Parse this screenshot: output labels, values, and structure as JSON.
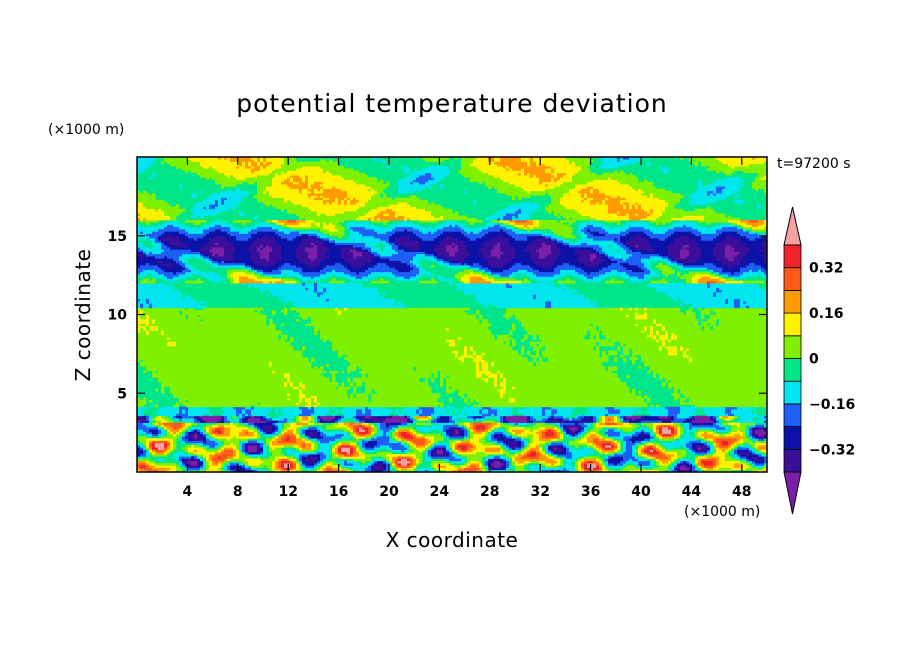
{
  "chart_data": {
    "type": "heatmap",
    "title": "potential temperature deviation",
    "xlabel": "X coordinate",
    "ylabel": "Z coordinate",
    "x_unit": "(×1000 m)",
    "y_unit": "(×1000 m)",
    "time_label": "t=97200 s",
    "xlim": [
      0,
      50
    ],
    "ylim": [
      0,
      20
    ],
    "x_ticks": [
      4,
      8,
      12,
      16,
      20,
      24,
      28,
      32,
      36,
      40,
      44,
      48
    ],
    "x_tick_labels": [
      "4",
      "8",
      "12",
      "16",
      "20",
      "24",
      "28",
      "32",
      "36",
      "40",
      "44",
      "48"
    ],
    "y_ticks": [
      5,
      10,
      15
    ],
    "y_tick_labels": [
      "5",
      "10",
      "15"
    ],
    "colorbar": {
      "levels": [
        -0.4,
        -0.32,
        -0.24,
        -0.16,
        -0.08,
        0,
        0.08,
        0.16,
        0.24,
        0.32,
        0.4
      ],
      "tick_values": [
        0.32,
        0.16,
        0,
        -0.16,
        -0.32
      ],
      "tick_labels": [
        "0.32",
        "0.16",
        "0",
        "−0.16",
        "−0.32"
      ],
      "colors": [
        "#7a1faa",
        "#3a0f9a",
        "#0c12a8",
        "#1e5ff5",
        "#00e5ee",
        "#00e58a",
        "#7ef000",
        "#fff200",
        "#ff9a00",
        "#ff5a1a",
        "#f0222a",
        "#f4a3a0"
      ],
      "extend": "both"
    },
    "layers": [
      {
        "z_range": [
          0,
          3.6
        ],
        "dominant": "mixed -0.4..0.4 convective cells"
      },
      {
        "z_range": [
          3.6,
          10.5
        ],
        "dominant": "0 to 0.08"
      },
      {
        "z_range": [
          10.5,
          12
        ],
        "dominant": "-0.16 to 0"
      },
      {
        "z_range": [
          12,
          16
        ],
        "dominant": "-0.4 band with >0.4 filaments"
      },
      {
        "z_range": [
          16,
          20
        ],
        "dominant": "-0.08 to 0.16"
      }
    ]
  }
}
